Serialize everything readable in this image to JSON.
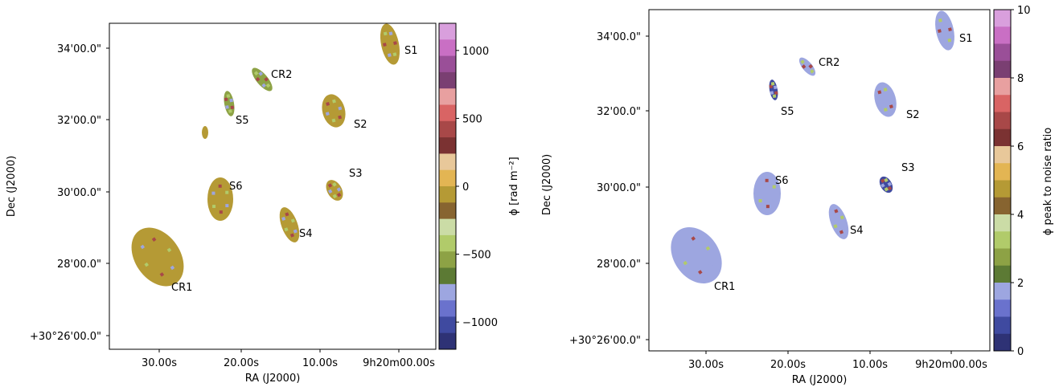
{
  "chart_data": [
    {
      "type": "map",
      "xlabel": "RA (J2000)",
      "ylabel": "Dec (J2000)",
      "x_ticks": [
        "30.00s",
        "20.00s",
        "10.00s",
        "9h20m00.00s"
      ],
      "y_ticks": [
        "34'00.0\"",
        "32'00.0\"",
        "30'00.0\"",
        "28'00.0\"",
        "+30°26'00.0\""
      ],
      "colorbar": {
        "label": "ϕ [rad m⁻²]",
        "range": [
          -1200,
          1200
        ],
        "ticks": [
          "1000",
          "500",
          "0",
          "−500",
          "−1000"
        ],
        "tick_values": [
          1000,
          500,
          0,
          -500,
          -1000
        ],
        "colors": [
          "#d99fdd",
          "#c96fc4",
          "#9a4f98",
          "#7a3f72",
          "#e8a0a0",
          "#d96464",
          "#a84848",
          "#7b3232",
          "#e8c89a",
          "#e3b553",
          "#b59a35",
          "#876430",
          "#cbdca6",
          "#b1cb6a",
          "#8da245",
          "#5c7a34",
          "#9da6e0",
          "#6a72cd",
          "#3f4aa0",
          "#2e3275"
        ]
      },
      "sources": [
        {
          "label": "S1",
          "dominant_value": 0
        },
        {
          "label": "CR2",
          "dominant_value": -500
        },
        {
          "label": "S5",
          "dominant_value": -500
        },
        {
          "label": "S2",
          "dominant_value": 0
        },
        {
          "label": "S3",
          "dominant_value": 0
        },
        {
          "label": "S6",
          "dominant_value": 0
        },
        {
          "label": "S4",
          "dominant_value": 0
        },
        {
          "label": "CR1",
          "dominant_value": 0
        }
      ]
    },
    {
      "type": "map",
      "xlabel": "RA (J2000)",
      "ylabel": "Dec (J2000)",
      "x_ticks": [
        "30.00s",
        "20.00s",
        "10.00s",
        "9h20m00.00s"
      ],
      "y_ticks": [
        "34'00.0\"",
        "32'00.0\"",
        "30'00.0\"",
        "28'00.0\"",
        "+30°26'00.0\""
      ],
      "colorbar": {
        "label": "ϕ peak to noise ratio",
        "range": [
          0,
          10
        ],
        "ticks": [
          "10",
          "8",
          "6",
          "4",
          "2",
          "0"
        ],
        "tick_values": [
          10,
          8,
          6,
          4,
          2,
          0
        ],
        "colors": [
          "#d99fdd",
          "#c96fc4",
          "#9a4f98",
          "#7a3f72",
          "#e8a0a0",
          "#d96464",
          "#a84848",
          "#7b3232",
          "#e8c89a",
          "#e3b553",
          "#b59a35",
          "#876430",
          "#cbdca6",
          "#b1cb6a",
          "#8da245",
          "#5c7a34",
          "#9da6e0",
          "#6a72cd",
          "#3f4aa0",
          "#2e3275"
        ]
      },
      "sources": [
        {
          "label": "S1",
          "dominant_value": 2
        },
        {
          "label": "CR2",
          "dominant_value": 2
        },
        {
          "label": "S5",
          "dominant_value": 1
        },
        {
          "label": "S2",
          "dominant_value": 2
        },
        {
          "label": "S3",
          "dominant_value": 1
        },
        {
          "label": "S6",
          "dominant_value": 2
        },
        {
          "label": "S4",
          "dominant_value": 2
        },
        {
          "label": "CR1",
          "dominant_value": 2
        }
      ]
    }
  ]
}
